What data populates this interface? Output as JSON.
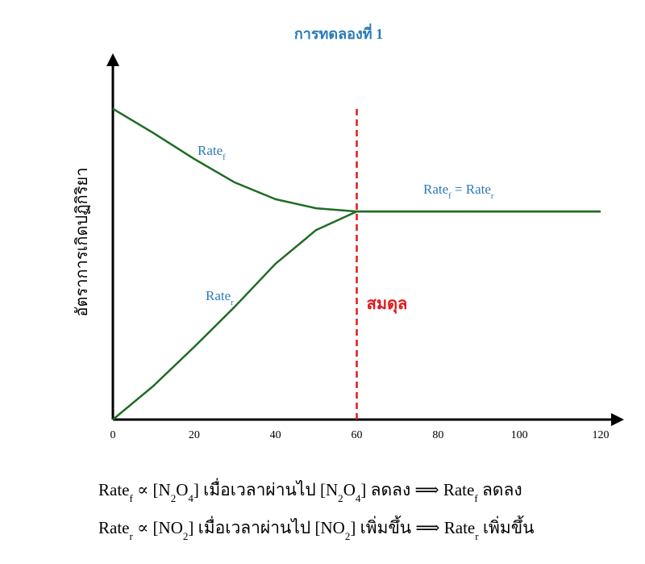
{
  "chart_data": {
    "type": "line",
    "title": "การทดลองที่ 1",
    "y_label": "อัตราการเกิดปฏิกิริยา",
    "x": [
      0,
      10,
      20,
      30,
      40,
      50,
      60,
      70,
      80,
      90,
      100,
      110,
      120
    ],
    "xlim": [
      0,
      120
    ],
    "xticks": [
      0,
      20,
      40,
      60,
      80,
      100,
      120
    ],
    "ylim": [
      0,
      100
    ],
    "series": [
      {
        "name": [
          {
            "text": "Rate"
          },
          {
            "sub": "f"
          }
        ],
        "color": "#1f6b24",
        "values": [
          85.6,
          78.9,
          71.8,
          65.3,
          60.7,
          58.2,
          57.3,
          57.3,
          57.3,
          57.3,
          57.3,
          57.3,
          57.3
        ]
      },
      {
        "name": [
          {
            "text": "Rate"
          },
          {
            "sub": "r"
          }
        ],
        "color": "#1f6b24",
        "values": [
          0,
          9.3,
          20,
          31.1,
          42.9,
          52.2,
          57.3,
          57.3,
          57.3,
          57.3,
          57.3,
          57.3,
          57.3
        ]
      }
    ],
    "label_color": "#2a7ab8",
    "equilibrium_label": [
      {
        "text": "Rate"
      },
      {
        "sub": "f"
      },
      {
        "text": " = Rate"
      },
      {
        "sub": "r"
      }
    ],
    "vline": {
      "x": 60,
      "color": "#e0191c",
      "label": "สมดุล"
    }
  },
  "formulas": [
    [
      {
        "text": "Rate"
      },
      {
        "sub": "f"
      },
      {
        "text": " ∝ [N"
      },
      {
        "sub": "2"
      },
      {
        "text": "O"
      },
      {
        "sub": "4"
      },
      {
        "text": "] เมื่อเวลาผ่านไป [N"
      },
      {
        "sub": "2"
      },
      {
        "text": "O"
      },
      {
        "sub": "4"
      },
      {
        "text": "] ลดลง ⟹ Rate"
      },
      {
        "sub": "f"
      },
      {
        "text": " ลดลง"
      }
    ],
    [
      {
        "text": "Rate"
      },
      {
        "sub": "r"
      },
      {
        "text": " ∝ [NO"
      },
      {
        "sub": "2"
      },
      {
        "text": "] เมื่อเวลาผ่านไป [NO"
      },
      {
        "sub": "2"
      },
      {
        "text": "] เพิ่มขึ้น ⟹ Rate"
      },
      {
        "sub": "r"
      },
      {
        "text": " เพิ่มขึ้น"
      }
    ]
  ]
}
